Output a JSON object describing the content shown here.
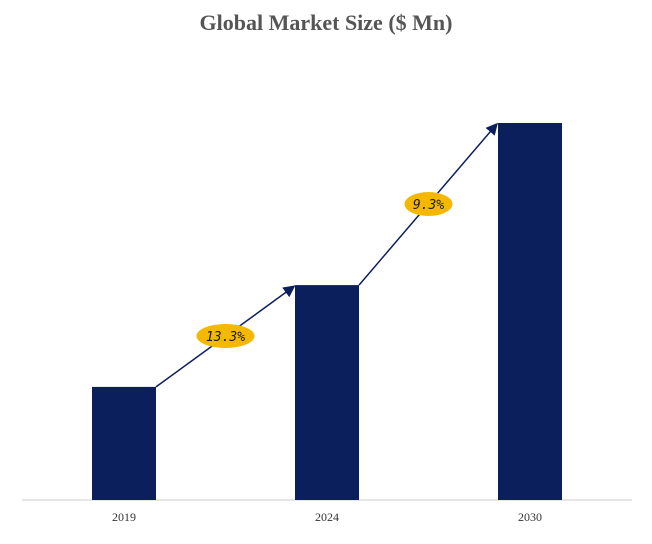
{
  "chart_data": {
    "type": "bar",
    "title": "Global Market Size ($ Mn)",
    "xlabel": "",
    "ylabel": "",
    "categories": [
      "2019",
      "2024",
      "2030"
    ],
    "values": [
      30,
      57,
      100
    ],
    "ylim": [
      0,
      100
    ],
    "grid": false,
    "annotations": [
      {
        "from": "2019",
        "to": "2024",
        "label": "13.3%"
      },
      {
        "from": "2024",
        "to": "2030",
        "label": "9.3%"
      }
    ],
    "colors": {
      "bar": "#0b1f5c",
      "arrow": "#0b1f5c",
      "badge": "#f5b800",
      "axis": "#cccccc"
    }
  }
}
